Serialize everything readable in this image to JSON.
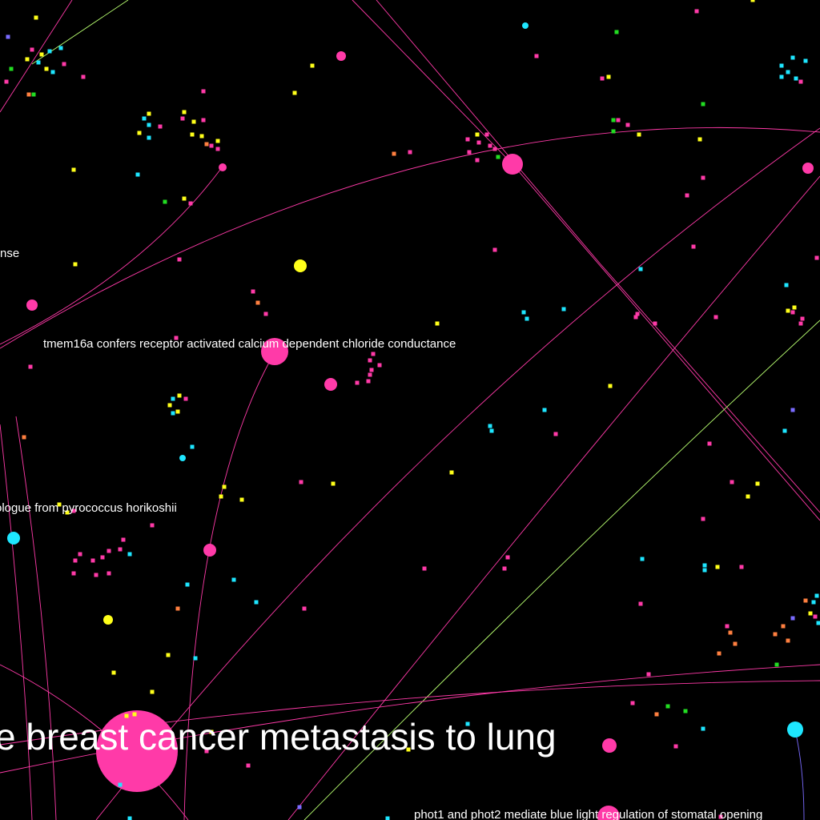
{
  "labels": {
    "partial_sense": "nse",
    "tmem16a": "tmem16a confers receptor activated calcium dependent chloride conductance",
    "pyrococcus": "ologue from pyrococcus horikoshii",
    "breast_cancer": "e breast cancer metastasis to lung",
    "phot": "phot1 and phot2 mediate blue light regulation of stomatal opening"
  },
  "colors": {
    "background": "#000000",
    "magenta": "#ff3aa8",
    "cyan": "#1ee6ff",
    "yellow": "#ffff1a",
    "green": "#22dd22",
    "orange": "#ff8040",
    "violet": "#7a6bff",
    "lime_edge": "#b8ff70",
    "label": "#ffffff"
  }
}
